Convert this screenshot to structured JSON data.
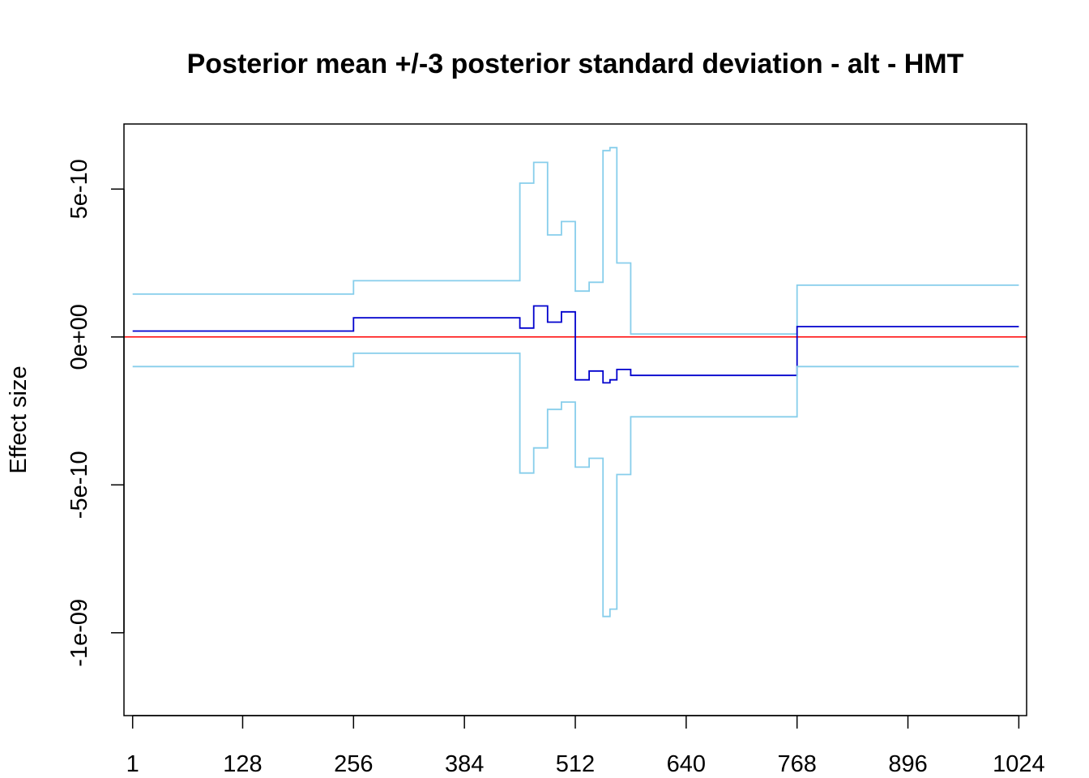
{
  "chart_data": {
    "type": "line",
    "title": "Posterior mean +/-3 posterior standard deviation - alt - HMT",
    "xlabel": "",
    "ylabel": "Effect size",
    "xlim": [
      -9,
      1033
    ],
    "ylim": [
      -1.28e-09,
      7.2e-10
    ],
    "x_ticks": [
      1,
      128,
      256,
      384,
      512,
      640,
      768,
      896,
      1024
    ],
    "x_tick_labels": [
      "1",
      "128",
      "256",
      "384",
      "512",
      "640",
      "768",
      "896",
      "1024"
    ],
    "y_ticks": [
      -1e-09,
      -5e-10,
      0,
      5e-10
    ],
    "y_tick_labels": [
      "-1e-09",
      "-5e-10",
      "0e+00",
      "5e-10"
    ],
    "grid": false,
    "legend": "none",
    "reference_line": {
      "y": 0,
      "color": "#FF0000"
    },
    "series": [
      {
        "role": "upper",
        "color": "#87CEEB",
        "x": [
          1,
          256,
          448,
          464,
          480,
          496,
          512,
          528,
          544,
          552,
          560,
          576,
          768,
          1024
        ],
        "y": [
          1.45e-10,
          1.9e-10,
          5.2e-10,
          5.9e-10,
          3.45e-10,
          3.9e-10,
          1.55e-10,
          1.85e-10,
          6.3e-10,
          6.4e-10,
          2.5e-10,
          1e-11,
          1.75e-10,
          1.75e-10
        ]
      },
      {
        "role": "mean",
        "color": "#0000CD",
        "x": [
          1,
          256,
          448,
          464,
          480,
          496,
          512,
          528,
          544,
          552,
          560,
          576,
          768,
          1024
        ],
        "y": [
          2e-11,
          6.5e-11,
          3e-11,
          1.05e-10,
          5e-11,
          8.5e-11,
          -1.45e-10,
          -1.15e-10,
          -1.55e-10,
          -1.45e-10,
          -1.1e-10,
          -1.3e-10,
          3.5e-11,
          3.5e-11
        ]
      },
      {
        "role": "lower",
        "color": "#87CEEB",
        "x": [
          1,
          256,
          448,
          464,
          480,
          496,
          512,
          528,
          544,
          552,
          560,
          576,
          768,
          1024
        ],
        "y": [
          -1e-10,
          -5.5e-11,
          -4.6e-10,
          -3.75e-10,
          -2.45e-10,
          -2.2e-10,
          -4.4e-10,
          -4.1e-10,
          -9.45e-10,
          -9.2e-10,
          -4.65e-10,
          -2.7e-10,
          -1e-10,
          -1e-10
        ]
      }
    ]
  }
}
